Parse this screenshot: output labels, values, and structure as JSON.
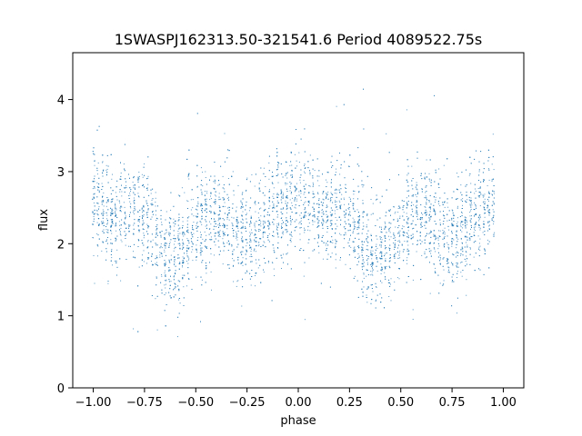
{
  "chart_data": {
    "type": "scatter",
    "title": "1SWASPJ162313.50-321541.6 Period 4089522.75s",
    "xlabel": "phase",
    "ylabel": "flux",
    "xlim": [
      -1.1,
      1.1
    ],
    "ylim": [
      0,
      4.65
    ],
    "xticks": [
      -1.0,
      -0.75,
      -0.5,
      -0.25,
      0.0,
      0.25,
      0.5,
      0.75,
      1.0
    ],
    "xtick_labels": [
      "−1.00",
      "−0.75",
      "−0.50",
      "−0.25",
      "0.00",
      "0.25",
      "0.50",
      "0.75",
      "1.00"
    ],
    "yticks": [
      0,
      1,
      2,
      3,
      4
    ],
    "ytick_labels": [
      "0",
      "1",
      "2",
      "3",
      "4"
    ],
    "grid": false,
    "point_color": "#1f77b4",
    "series": [
      {
        "profile": {
          "phase": [
            -1.0,
            -0.95,
            -0.9,
            -0.85,
            -0.8,
            -0.75,
            -0.7,
            -0.65,
            -0.6,
            -0.55,
            -0.5,
            -0.45,
            -0.4,
            -0.35,
            -0.3,
            -0.25,
            -0.2,
            -0.15,
            -0.1,
            -0.05,
            0.0,
            0.05,
            0.1
          ],
          "flux": [
            2.65,
            2.4,
            2.35,
            2.4,
            2.45,
            2.4,
            2.1,
            1.8,
            1.85,
            2.0,
            2.2,
            2.35,
            2.45,
            2.35,
            2.15,
            2.1,
            2.2,
            2.35,
            2.5,
            2.55,
            2.6,
            2.55,
            2.45
          ]
        },
        "scatter": 0.35,
        "n_points": 6000
      }
    ]
  }
}
